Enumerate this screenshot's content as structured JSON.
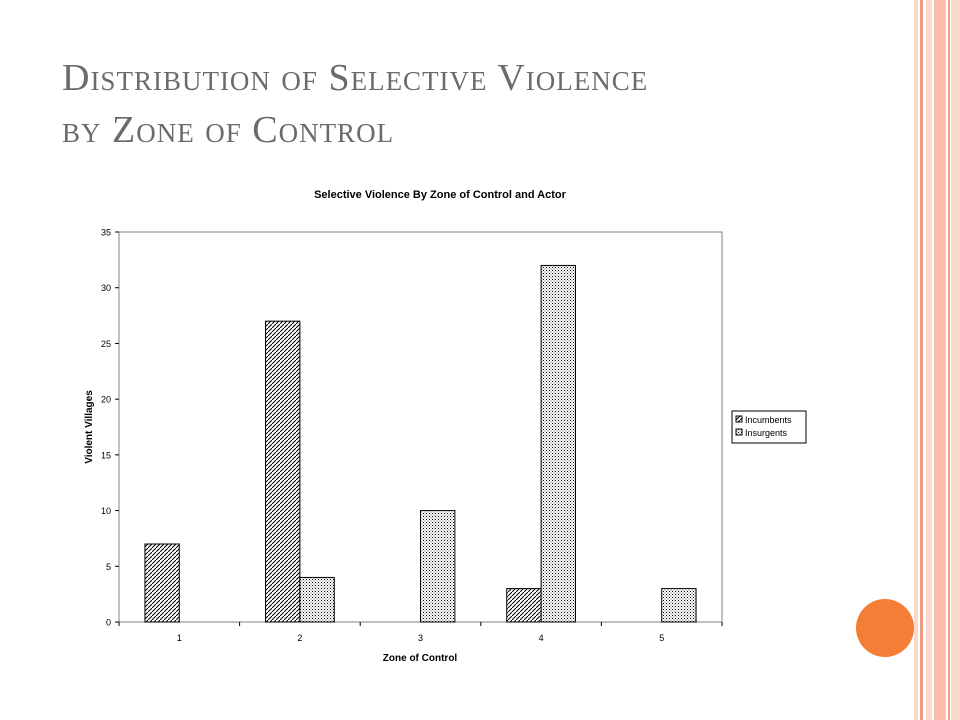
{
  "slide": {
    "title_line1": "Distribution of Selective Violence",
    "title_line2": "by Zone of Control"
  },
  "colors": {
    "title_text": "#6b6b6b",
    "accent_dot": "#f47e36",
    "side_bar_light": "#fcd9cd",
    "side_bar_mid": "#f9bfa9",
    "side_bar_line": "#f19b80"
  },
  "chart_data": {
    "type": "bar",
    "title": "Selective Violence By Zone of Control and Actor",
    "xlabel": "Zone of Control",
    "ylabel": "Violent Villages",
    "categories": [
      "1",
      "2",
      "3",
      "4",
      "5"
    ],
    "ylim": [
      0,
      35
    ],
    "yticks": [
      0,
      5,
      10,
      15,
      20,
      25,
      30,
      35
    ],
    "grid": false,
    "legend_position": "right",
    "series": [
      {
        "name": "Incumbents",
        "pattern": "diagonal-hatch",
        "values": [
          7,
          27,
          0,
          3,
          0
        ]
      },
      {
        "name": "Insurgents",
        "pattern": "dotted",
        "values": [
          0,
          4,
          10,
          32,
          3
        ]
      }
    ]
  }
}
